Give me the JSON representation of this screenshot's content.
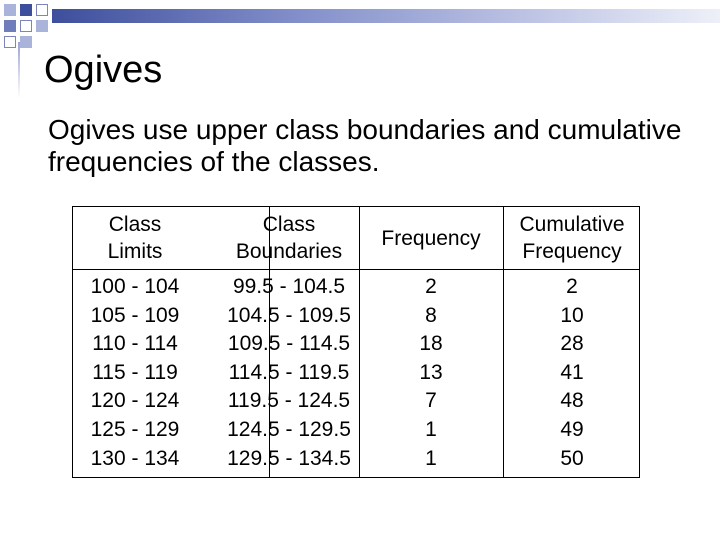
{
  "title": "Ogives",
  "body_text": "Ogives use upper class boundaries and cumulative frequencies of the classes.",
  "table": {
    "headers": [
      [
        "Class",
        "Limits"
      ],
      [
        "Class",
        "Boundaries"
      ],
      [
        "Frequency"
      ],
      [
        "Cumulative",
        "Frequency"
      ]
    ],
    "class_limits": [
      "100 - 104",
      "105 - 109",
      "110 - 114",
      "115 - 119",
      "120 - 124",
      "125 - 129",
      "130 - 134"
    ],
    "class_boundaries": [
      "99.5 - 104.5",
      "104.5 - 109.5",
      "109.5 - 114.5",
      "114.5 - 119.5",
      "119.5 - 124.5",
      "124.5 - 129.5",
      "129.5 - 134.5"
    ],
    "frequency": [
      "2",
      "8",
      "18",
      "13",
      "7",
      "1",
      "1"
    ],
    "cumulative_frequency": [
      "2",
      "10",
      "28",
      "41",
      "48",
      "49",
      "50"
    ]
  },
  "colors": {
    "accent_dark": "#3d4e9c",
    "accent_light": "#aab3da"
  }
}
